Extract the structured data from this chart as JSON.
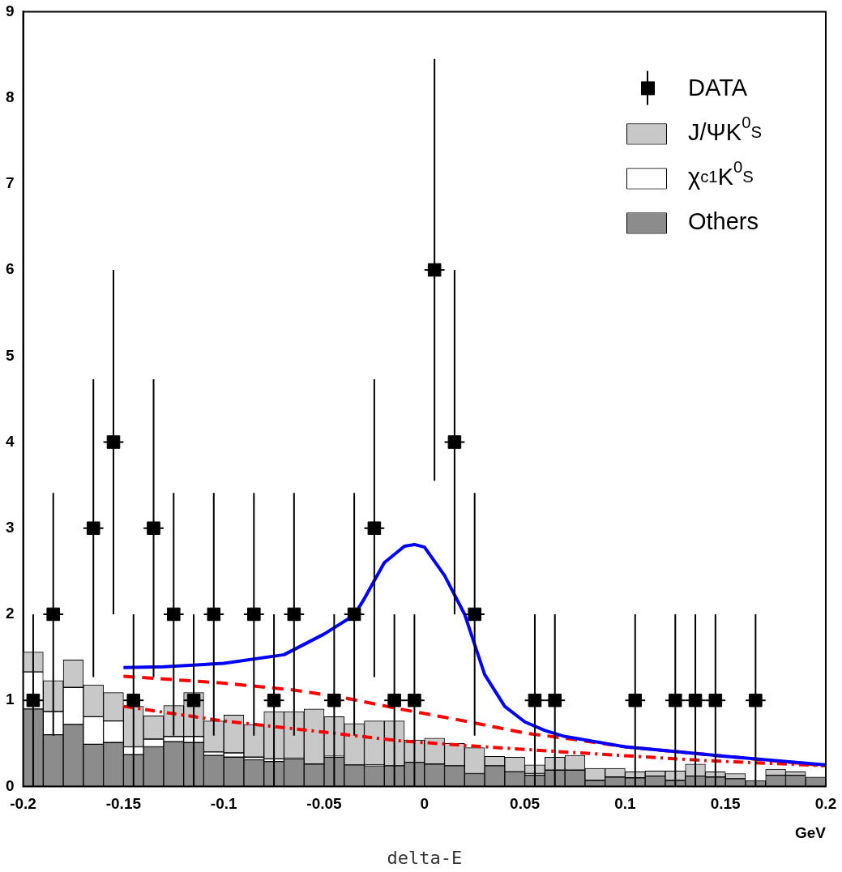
{
  "chart_data": {
    "type": "bar",
    "xlabel": "GeV",
    "annotations": [
      "delta-E"
    ],
    "legend": "top right",
    "xlim": [
      -0.2,
      0.2
    ],
    "ylim": [
      0,
      9
    ],
    "xticks": [
      -0.2,
      -0.15,
      -0.1,
      -0.05,
      0,
      0.05,
      0.1,
      0.15,
      0.2
    ],
    "yticks": [
      0,
      1,
      2,
      3,
      4,
      5,
      6,
      7,
      8,
      9
    ],
    "x": [
      -0.195,
      -0.185,
      -0.175,
      -0.165,
      -0.155,
      -0.145,
      -0.135,
      -0.125,
      -0.115,
      -0.105,
      -0.095,
      -0.085,
      -0.075,
      -0.065,
      -0.055,
      -0.045,
      -0.035,
      -0.025,
      -0.015,
      -0.005,
      0.005,
      0.015,
      0.025,
      0.035,
      0.045,
      0.055,
      0.065,
      0.075,
      0.085,
      0.095,
      0.105,
      0.115,
      0.125,
      0.135,
      0.145,
      0.155,
      0.165,
      0.175,
      0.185,
      0.195
    ],
    "stacked": true,
    "series": [
      {
        "name": "Others",
        "color": "#8c8c8c",
        "values": [
          0.9,
          0.6,
          0.72,
          0.49,
          0.51,
          0.37,
          0.46,
          0.52,
          0.51,
          0.36,
          0.34,
          0.31,
          0.29,
          0.32,
          0.26,
          0.34,
          0.25,
          0.24,
          0.24,
          0.28,
          0.26,
          0.24,
          0.15,
          0.24,
          0.17,
          0.13,
          0.19,
          0.19,
          0.07,
          0.11,
          0.1,
          0.12,
          0.07,
          0.12,
          0.11,
          0.09,
          0.07,
          0.13,
          0.13,
          0.11
        ]
      },
      {
        "name": "χ$_{c1}$K$^{0}$$_{S}$",
        "color": "#ffffff",
        "values": [
          0.43,
          0.27,
          0.43,
          0.32,
          0.25,
          0.09,
          0.09,
          0.06,
          0.07,
          0.04,
          0.05,
          0.03,
          0.03,
          0.01,
          0,
          0.01,
          0,
          0.01,
          0,
          0,
          0,
          0,
          0,
          0,
          0,
          0.02,
          0,
          0,
          0,
          0,
          0,
          0,
          0,
          0,
          0,
          0,
          0,
          0,
          0,
          0
        ]
      },
      {
        "name": "J/ΨK$^{0}$$_{S}$",
        "color": "#c8c8c8",
        "values": [
          0.23,
          0.36,
          0.32,
          0.37,
          0.33,
          0.47,
          0.27,
          0.36,
          0.51,
          0.36,
          0.44,
          0.38,
          0.55,
          0.54,
          0.64,
          0.46,
          0.48,
          0.51,
          0.52,
          0.26,
          0.3,
          0.26,
          0.3,
          0.11,
          0.17,
          0.1,
          0.15,
          0.17,
          0.14,
          0.1,
          0.07,
          0.06,
          0.11,
          0.14,
          0.06,
          0.06,
          0,
          0.07,
          0.04,
          0
        ]
      },
      {
        "type": "line",
        "color": "#0000ff",
        "line_style": "solid",
        "x": [
          -0.15,
          -0.13,
          -0.1,
          -0.07,
          -0.05,
          -0.035,
          -0.03,
          -0.02,
          -0.01,
          -0.005,
          0,
          0.01,
          0.02,
          0.03,
          0.04,
          0.05,
          0.06,
          0.07,
          0.1,
          0.15,
          0.2
        ],
        "values": [
          1.38,
          1.39,
          1.43,
          1.53,
          1.77,
          1.99,
          2.18,
          2.6,
          2.79,
          2.81,
          2.78,
          2.45,
          2.0,
          1.3,
          0.93,
          0.75,
          0.65,
          0.58,
          0.46,
          0.35,
          0.25
        ]
      },
      {
        "type": "line",
        "color": "#ff0000",
        "line_style": "dashed",
        "x": [
          -0.15,
          -0.1,
          -0.065,
          -0.04,
          -0.0125,
          0.02,
          0.05,
          0.07,
          0.1,
          0.15,
          0.2
        ],
        "values": [
          1.28,
          1.2,
          1.12,
          1.03,
          0.9,
          0.76,
          0.62,
          0.56,
          0.46,
          0.35,
          0.24
        ]
      },
      {
        "type": "line",
        "color": "#ff0000",
        "line_style": "dotted",
        "x": [
          -0.15,
          -0.1,
          -0.065,
          -0.0125,
          0.03,
          0.07,
          0.14,
          0.2
        ],
        "values": [
          0.93,
          0.76,
          0.67,
          0.53,
          0.46,
          0.4,
          0.3,
          0.24
        ]
      },
      {
        "type": "scatter",
        "name": "DATA",
        "color": "#000000",
        "marker": "square",
        "x": [
          -0.195,
          -0.185,
          -0.165,
          -0.155,
          -0.145,
          -0.135,
          -0.125,
          -0.115,
          -0.105,
          -0.085,
          -0.075,
          -0.065,
          -0.045,
          -0.035,
          -0.025,
          -0.015,
          -0.005,
          0.005,
          0.015,
          0.025,
          0.055,
          0.065,
          0.105,
          0.125,
          0.135,
          0.145,
          0.165
        ],
        "values": [
          1,
          2,
          3,
          4,
          1,
          3,
          2,
          1,
          2,
          2,
          1,
          2,
          1,
          2,
          3,
          1,
          1,
          6,
          4,
          2,
          1,
          1,
          1,
          1,
          1,
          1,
          1
        ],
        "errors": [
          1,
          1.41,
          1.73,
          2,
          1,
          1.73,
          1.41,
          1,
          1.41,
          1.41,
          1,
          1.41,
          1,
          1.41,
          1.73,
          1,
          1,
          2.45,
          2,
          1.41,
          1,
          1,
          1,
          1,
          1,
          1,
          1
        ],
        "xerrors": [
          0.005,
          0.005,
          0.005,
          0.005,
          0.005,
          0.005,
          0.005,
          0.005,
          0.005,
          0.005,
          0.005,
          0.005,
          0.005,
          0.005,
          0.005,
          0.005,
          0.005,
          0.005,
          0.005,
          0.005,
          0.005,
          0.005,
          0.005,
          0.005,
          0.005,
          0.005,
          0.005
        ]
      }
    ]
  }
}
